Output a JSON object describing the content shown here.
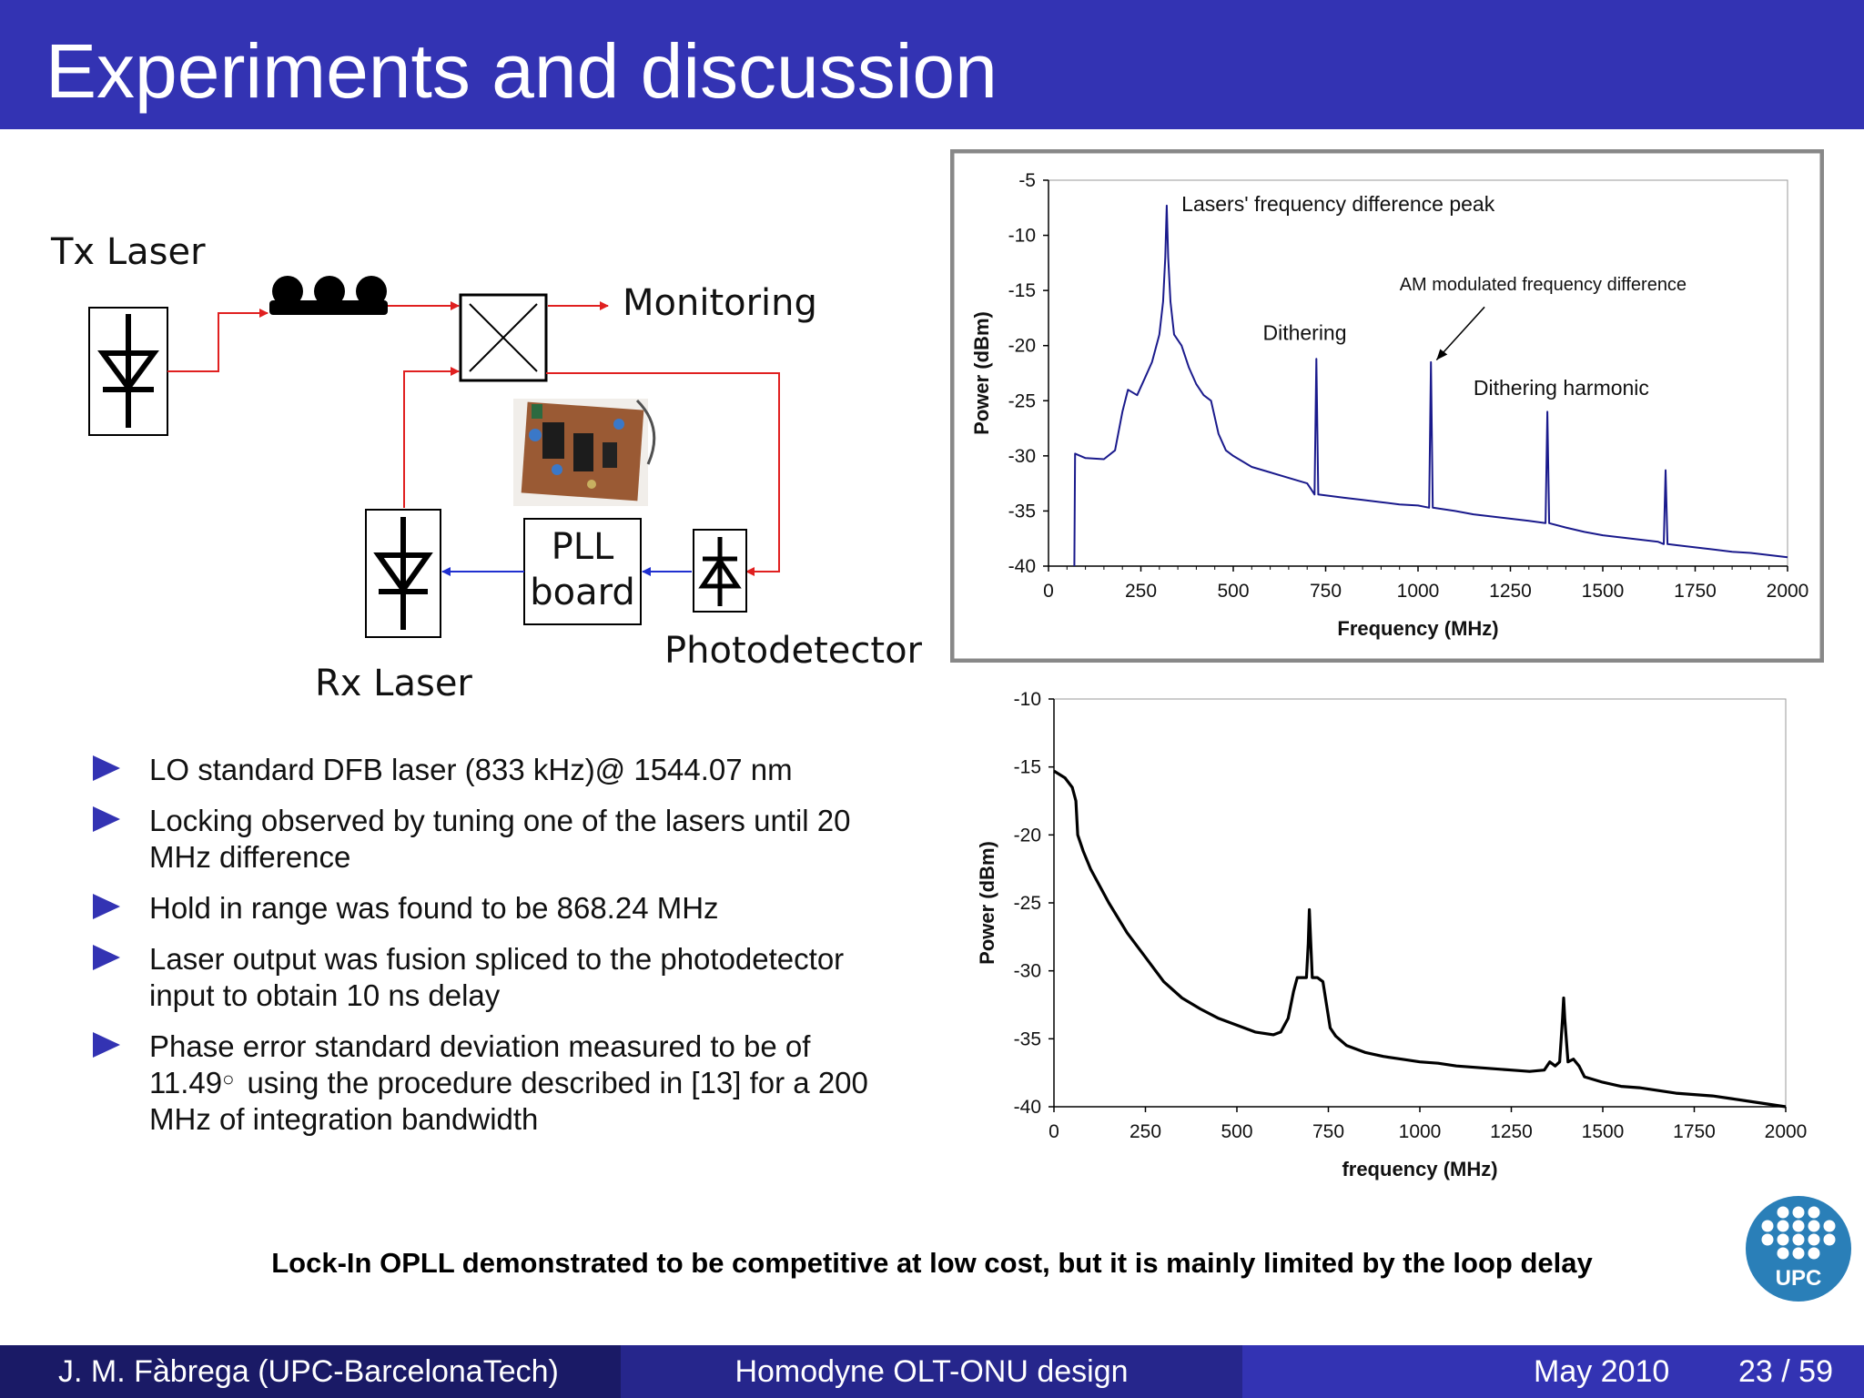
{
  "header": {
    "title": "Experiments and discussion"
  },
  "diagram": {
    "tx_laser": "Tx Laser",
    "monitoring": "Monitoring",
    "pll_line1": "PLL",
    "pll_line2": "board",
    "photodetector": "Photodetector",
    "rx_laser": "Rx Laser",
    "colors": {
      "optical": "#e02020",
      "electrical": "#2030d0"
    }
  },
  "bullets": [
    {
      "text": "LO standard DFB laser (833 kHz)@ 1544.07 nm"
    },
    {
      "text": "Locking observed by tuning one of the lasers until 20 MHz difference"
    },
    {
      "text": "Hold in range was found to be 868.24 MHz"
    },
    {
      "text": "Laser output was fusion spliced to the photodetector input to obtain 10 ns delay"
    },
    {
      "pre": "Phase error standard deviation measured to be of 11.49",
      "degree": "○",
      "post": "using the procedure described in [13] for a 200 MHz of integration bandwidth"
    }
  ],
  "conclusion": "Lock-In OPLL demonstrated to be competitive at low cost, but it is mainly limited by the loop delay",
  "footer": {
    "author": "J. M. Fàbrega  (UPC-BarcelonaTech)",
    "talk": "Homodyne OLT-ONU design",
    "date": "May 2010",
    "page": "23 / 59"
  },
  "logo": {
    "text": "UPC",
    "color": "#2a7fb8"
  },
  "chart_data": [
    {
      "type": "line",
      "xlabel": "Frequency (MHz)",
      "ylabel": "Power (dBm)",
      "xlim": [
        0,
        2000
      ],
      "ylim": [
        -40,
        -5
      ],
      "x_ticks": [
        "0",
        "250",
        "500",
        "750",
        "1000",
        "1250",
        "1500",
        "1750",
        "2000"
      ],
      "y_ticks": [
        "-5",
        "-10",
        "-15",
        "-20",
        "-25",
        "-30",
        "-35",
        "-40"
      ],
      "color": "#1a1a8c",
      "annotations": [
        {
          "text": "Lasers' frequency difference peak",
          "x": 360,
          "y": -7.8
        },
        {
          "text": "AM modulated frequency difference",
          "x": 950,
          "y": -15
        },
        {
          "text": "Dithering",
          "x": 580,
          "y": -19.5
        },
        {
          "text": "Dithering harmonic",
          "x": 1150,
          "y": -24.5
        }
      ],
      "points": [
        [
          70,
          -40
        ],
        [
          72,
          -29.8
        ],
        [
          100,
          -30.2
        ],
        [
          150,
          -30.3
        ],
        [
          180,
          -29.5
        ],
        [
          200,
          -26
        ],
        [
          215,
          -24
        ],
        [
          240,
          -24.5
        ],
        [
          260,
          -23
        ],
        [
          280,
          -21.5
        ],
        [
          300,
          -19
        ],
        [
          310,
          -16
        ],
        [
          316,
          -12
        ],
        [
          320,
          -7.3
        ],
        [
          324,
          -12
        ],
        [
          330,
          -16
        ],
        [
          340,
          -19
        ],
        [
          360,
          -20
        ],
        [
          380,
          -22
        ],
        [
          400,
          -23.5
        ],
        [
          420,
          -24.5
        ],
        [
          440,
          -25
        ],
        [
          460,
          -28
        ],
        [
          480,
          -29.5
        ],
        [
          500,
          -30
        ],
        [
          550,
          -31
        ],
        [
          600,
          -31.5
        ],
        [
          650,
          -32
        ],
        [
          700,
          -32.5
        ],
        [
          710,
          -33
        ],
        [
          720,
          -33.5
        ],
        [
          725,
          -21.2
        ],
        [
          730,
          -33.5
        ],
        [
          800,
          -33.8
        ],
        [
          850,
          -34
        ],
        [
          900,
          -34.2
        ],
        [
          950,
          -34.4
        ],
        [
          1000,
          -34.5
        ],
        [
          1030,
          -34.7
        ],
        [
          1035,
          -21.5
        ],
        [
          1040,
          -34.7
        ],
        [
          1100,
          -35
        ],
        [
          1150,
          -35.3
        ],
        [
          1200,
          -35.5
        ],
        [
          1250,
          -35.7
        ],
        [
          1300,
          -35.9
        ],
        [
          1345,
          -36.1
        ],
        [
          1350,
          -26
        ],
        [
          1355,
          -36.1
        ],
        [
          1400,
          -36.5
        ],
        [
          1450,
          -36.9
        ],
        [
          1500,
          -37.2
        ],
        [
          1550,
          -37.4
        ],
        [
          1600,
          -37.6
        ],
        [
          1650,
          -37.8
        ],
        [
          1665,
          -38
        ],
        [
          1670,
          -31.3
        ],
        [
          1675,
          -38
        ],
        [
          1700,
          -38.1
        ],
        [
          1750,
          -38.3
        ],
        [
          1800,
          -38.5
        ],
        [
          1850,
          -38.7
        ],
        [
          1900,
          -38.8
        ],
        [
          1950,
          -39
        ],
        [
          2000,
          -39.2
        ]
      ]
    },
    {
      "type": "line",
      "xlabel": "frequency (MHz)",
      "ylabel": "Power (dBm)",
      "xlim": [
        0,
        2000
      ],
      "ylim": [
        -40,
        -10
      ],
      "x_ticks": [
        "0",
        "250",
        "500",
        "750",
        "1000",
        "1250",
        "1500",
        "1750",
        "2000"
      ],
      "y_ticks": [
        "-10",
        "-15",
        "-20",
        "-25",
        "-30",
        "-35",
        "-40"
      ],
      "color": "#000000",
      "points": [
        [
          0,
          -15.3
        ],
        [
          30,
          -15.8
        ],
        [
          50,
          -16.5
        ],
        [
          60,
          -17.5
        ],
        [
          65,
          -20
        ],
        [
          80,
          -21.2
        ],
        [
          100,
          -22.5
        ],
        [
          150,
          -25
        ],
        [
          200,
          -27.2
        ],
        [
          250,
          -29
        ],
        [
          300,
          -30.8
        ],
        [
          350,
          -32
        ],
        [
          400,
          -32.8
        ],
        [
          450,
          -33.5
        ],
        [
          500,
          -34
        ],
        [
          550,
          -34.5
        ],
        [
          600,
          -34.7
        ],
        [
          620,
          -34.5
        ],
        [
          640,
          -33.5
        ],
        [
          655,
          -31.5
        ],
        [
          665,
          -30.5
        ],
        [
          680,
          -30.5
        ],
        [
          690,
          -30.5
        ],
        [
          695,
          -28
        ],
        [
          698,
          -25.5
        ],
        [
          702,
          -28
        ],
        [
          706,
          -30.5
        ],
        [
          720,
          -30.5
        ],
        [
          735,
          -30.8
        ],
        [
          745,
          -32.5
        ],
        [
          755,
          -34.2
        ],
        [
          770,
          -34.8
        ],
        [
          800,
          -35.5
        ],
        [
          850,
          -36
        ],
        [
          900,
          -36.3
        ],
        [
          950,
          -36.5
        ],
        [
          1000,
          -36.7
        ],
        [
          1050,
          -36.8
        ],
        [
          1100,
          -37
        ],
        [
          1150,
          -37.1
        ],
        [
          1200,
          -37.2
        ],
        [
          1250,
          -37.3
        ],
        [
          1300,
          -37.4
        ],
        [
          1340,
          -37.3
        ],
        [
          1355,
          -36.7
        ],
        [
          1370,
          -37
        ],
        [
          1382,
          -36.7
        ],
        [
          1390,
          -33.5
        ],
        [
          1393,
          -32
        ],
        [
          1396,
          -33.5
        ],
        [
          1405,
          -36.7
        ],
        [
          1420,
          -36.5
        ],
        [
          1435,
          -37
        ],
        [
          1450,
          -37.8
        ],
        [
          1500,
          -38.2
        ],
        [
          1550,
          -38.5
        ],
        [
          1600,
          -38.6
        ],
        [
          1650,
          -38.8
        ],
        [
          1700,
          -39
        ],
        [
          1750,
          -39.1
        ],
        [
          1800,
          -39.2
        ],
        [
          1850,
          -39.4
        ],
        [
          1900,
          -39.6
        ],
        [
          1950,
          -39.8
        ],
        [
          2000,
          -40
        ]
      ]
    }
  ]
}
